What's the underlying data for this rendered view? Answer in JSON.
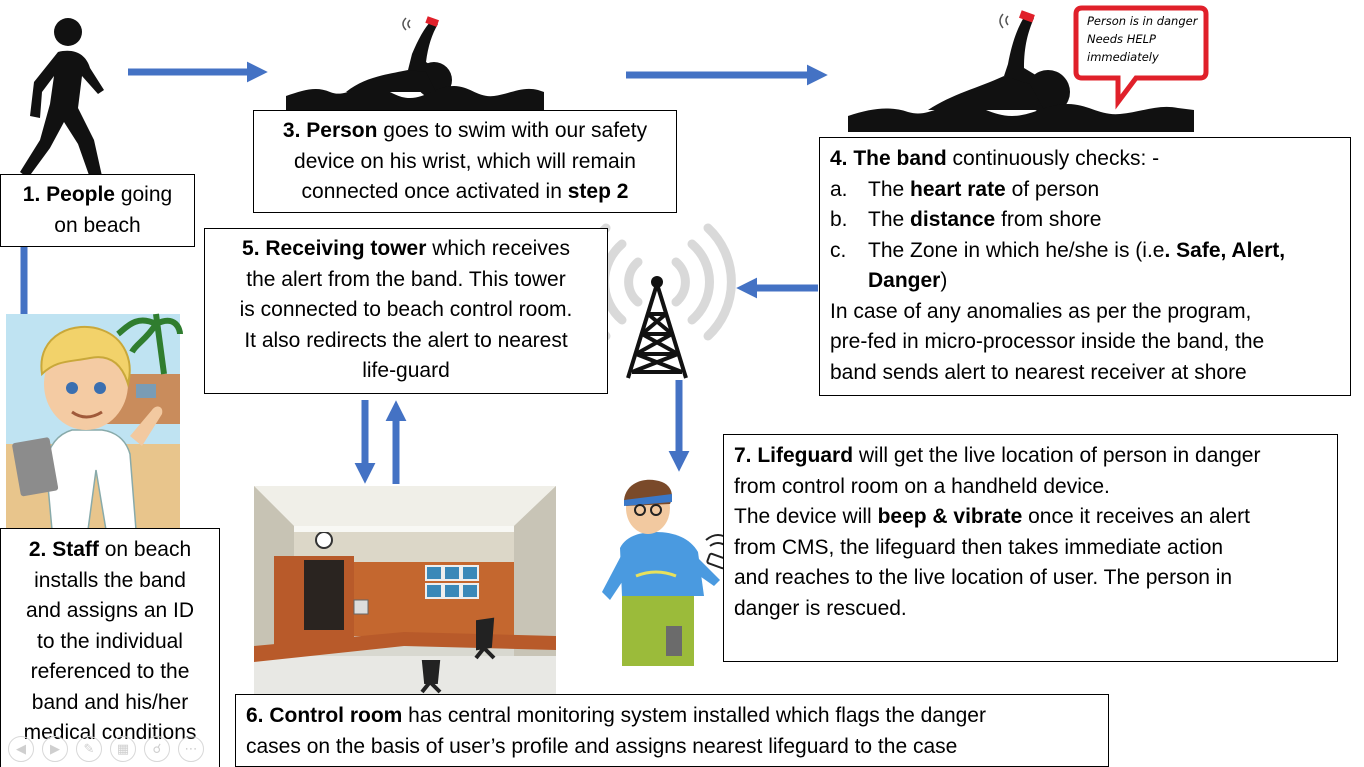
{
  "step1": {
    "bold": "1. People",
    "rest_a": " going",
    "rest_b": "on beach"
  },
  "step2": {
    "bold": "2. Staff",
    "l1": " on beach",
    "l2": "installs the band",
    "l3": "and assigns an ID",
    "l4": "to the individual",
    "l5": "referenced to the",
    "l6": "band and his/her",
    "l7": "medical conditions"
  },
  "step3": {
    "bold": "3. Person",
    "l1": " goes to swim with our safety",
    "l2": "device on his wrist, which will remain",
    "l3": "connected once activated in ",
    "l3_bold": "step 2"
  },
  "step4": {
    "bold": "4. The band",
    "l1": " continuously checks: -",
    "items": [
      {
        "label": "a.",
        "pre": "The ",
        "bold": "heart rate",
        "post": " of person"
      },
      {
        "label": "b.",
        "pre": "The ",
        "bold": "distance",
        "post": " from shore"
      },
      {
        "label": "c.",
        "pre": "The Zone in which he/she is (i.e",
        "bold": ". Safe, Alert,",
        "post": ""
      }
    ],
    "item_c_cont_bold": "Danger",
    "item_c_cont_post": ")",
    "p1": "In case of any anomalies as per the program,",
    "p2": "pre-fed in micro-processor inside the band, the",
    "p3": "band sends alert to nearest receiver at shore"
  },
  "step5": {
    "bold_a": "5.",
    "bold_b": " Receiving tower",
    "l1": " which receives",
    "l2": "the alert from the band. This tower",
    "l3": "is connected to beach control room.",
    "l4": "It also redirects the alert to nearest",
    "l5": "life-guard"
  },
  "step6": {
    "bold": "6. Control room",
    "l1": " has central monitoring system installed which flags the danger",
    "l2": "cases on the basis of user’s profile and assigns nearest lifeguard to the case"
  },
  "step7": {
    "bold": "7. Lifeguard",
    "l1": " will get the live location of person in danger",
    "l2": "from control room on a handheld device.",
    "l3_pre": "The device will ",
    "l3_bold": "beep & vibrate",
    "l3_post": " once it receives an alert",
    "l4": "from CMS, the lifeguard then takes immediate action",
    "l5": "and reaches to the live location of user. The person in",
    "l6": "danger is rescued."
  },
  "speech": {
    "l1": "Person is in danger",
    "l2": "Needs HELP",
    "l3": "immediately"
  },
  "colors": {
    "arrow": "#4472c4",
    "speech_border": "#e0202a",
    "silhouette": "#111111"
  },
  "icons": [
    "walking-person-icon",
    "swimmer-icon",
    "drowning-swimmer-icon",
    "radio-tower-icon",
    "staff-illustration",
    "control-room-photo",
    "lifeguard-illustration"
  ]
}
